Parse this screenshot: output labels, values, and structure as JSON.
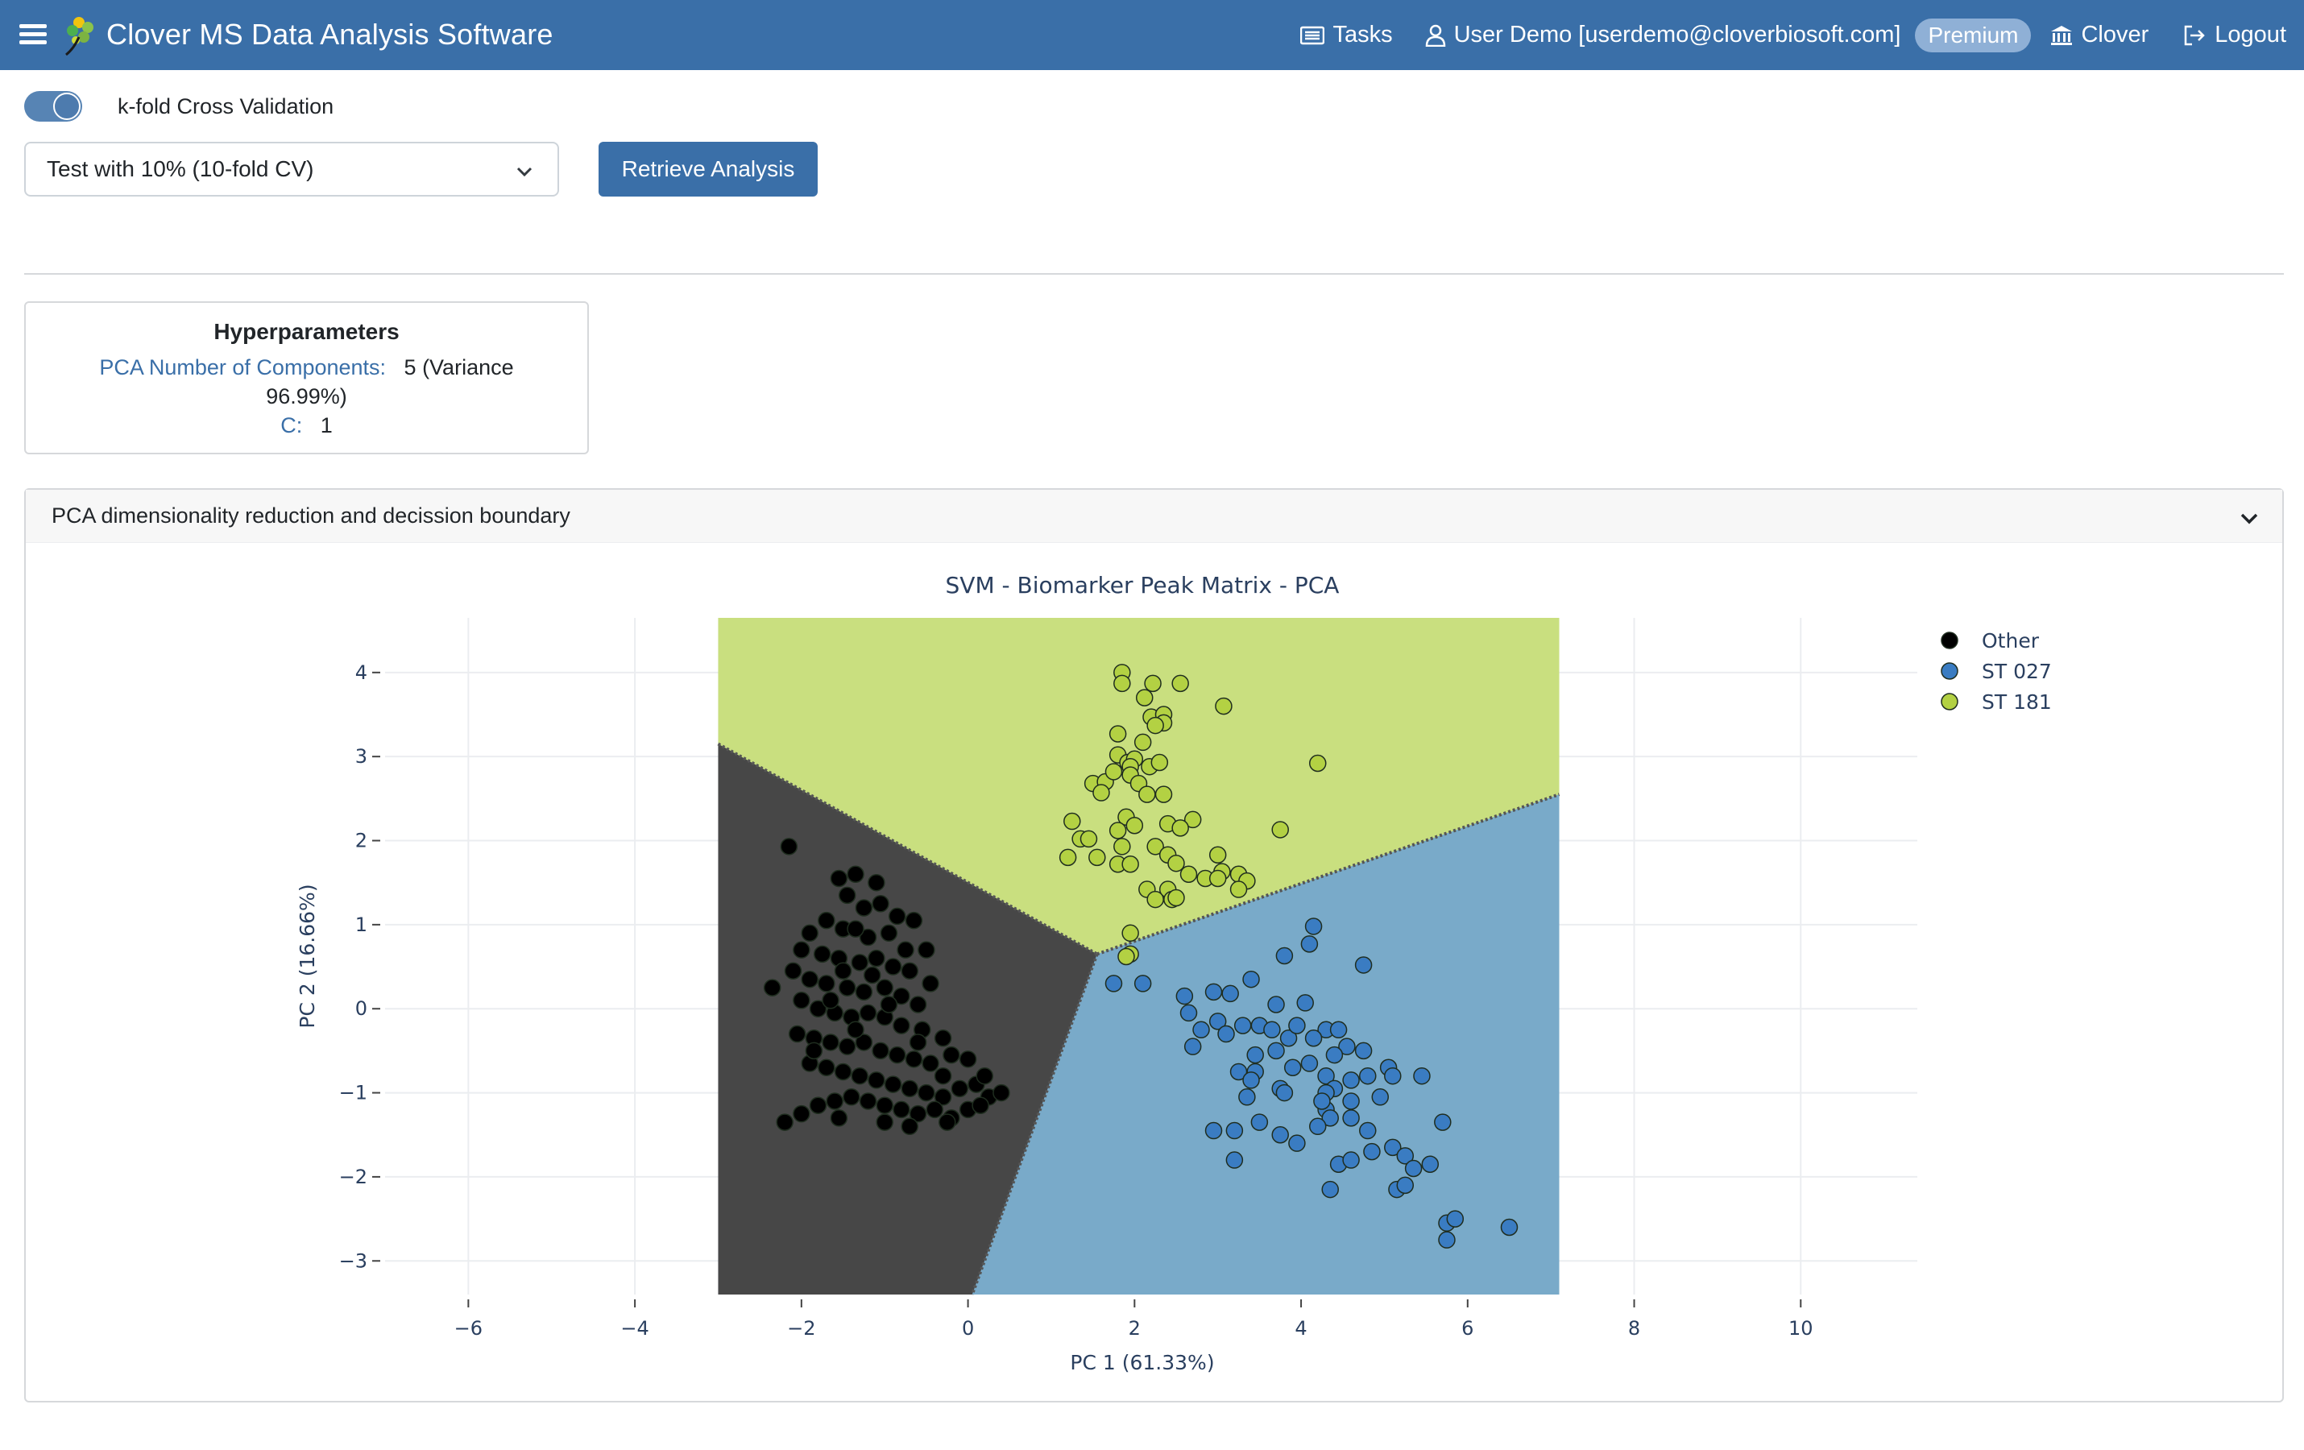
{
  "navbar": {
    "title": "Clover MS Data Analysis Software",
    "tasks_label": "Tasks",
    "user_label": "User Demo [userdemo@cloverbiosoft.com]",
    "premium_label": "Premium",
    "clover_label": "Clover",
    "logout_label": "Logout",
    "color": "#3a6fa8"
  },
  "controls": {
    "cv_toggle_label": "k-fold Cross Validation",
    "cv_toggle_on": true,
    "select_value": "Test with 10% (10-fold CV)",
    "retrieve_button": "Retrieve Analysis"
  },
  "hyperparameters": {
    "title": "Hyperparameters",
    "pca_key": "PCA Number of Components:",
    "pca_value_line1": "5 (Variance",
    "pca_value_line2": "96.99%)",
    "c_key": "C:",
    "c_value": "1"
  },
  "accordion": {
    "header": "PCA dimensionality reduction and decission boundary"
  },
  "chart_data": {
    "type": "scatter",
    "title": "SVM - Biomarker Peak Matrix - PCA",
    "xlabel": "PC 1 (61.33%)",
    "ylabel": "PC 2 (16.66%)",
    "xlim": [
      -7,
      11.4
    ],
    "ylim": [
      -3.4,
      4.65
    ],
    "xticks": [
      -6,
      -4,
      -2,
      0,
      2,
      4,
      6,
      8,
      10
    ],
    "yticks": [
      -3,
      -2,
      -1,
      0,
      1,
      2,
      3,
      4
    ],
    "grid": true,
    "legend_position": "top-right",
    "decision_regions": {
      "x_range": [
        -3,
        7.1
      ],
      "y_range": [
        -3.4,
        4.65
      ],
      "junction": [
        1.55,
        0.65
      ],
      "boundary_top_left": [
        -3,
        3.15
      ],
      "boundary_right": [
        7.1,
        2.55
      ],
      "boundary_bottom": [
        0.05,
        -3.4
      ],
      "colors": {
        "Other": "#474747",
        "ST 027": "#79aac9",
        "ST 181": "#c9df7f"
      }
    },
    "series": [
      {
        "name": "Other",
        "color": "#000000",
        "points": [
          [
            -2.15,
            1.93
          ],
          [
            -2.35,
            0.25
          ],
          [
            -1.55,
            1.55
          ],
          [
            -1.35,
            1.6
          ],
          [
            -1.1,
            1.5
          ],
          [
            -1.45,
            1.35
          ],
          [
            -1.25,
            1.2
          ],
          [
            -1.05,
            1.25
          ],
          [
            -0.85,
            1.1
          ],
          [
            -1.7,
            1.05
          ],
          [
            -1.9,
            0.9
          ],
          [
            -1.5,
            0.95
          ],
          [
            -1.2,
            0.85
          ],
          [
            -0.95,
            0.9
          ],
          [
            -0.75,
            0.7
          ],
          [
            -0.5,
            0.7
          ],
          [
            -2.0,
            0.7
          ],
          [
            -1.75,
            0.65
          ],
          [
            -1.55,
            0.6
          ],
          [
            -1.3,
            0.55
          ],
          [
            -1.1,
            0.6
          ],
          [
            -0.9,
            0.5
          ],
          [
            -0.7,
            0.45
          ],
          [
            -0.45,
            0.3
          ],
          [
            -2.1,
            0.45
          ],
          [
            -1.9,
            0.35
          ],
          [
            -1.7,
            0.3
          ],
          [
            -1.45,
            0.25
          ],
          [
            -1.25,
            0.2
          ],
          [
            -1.0,
            0.25
          ],
          [
            -0.8,
            0.15
          ],
          [
            -0.6,
            0.05
          ],
          [
            -2.0,
            0.1
          ],
          [
            -1.8,
            0.0
          ],
          [
            -1.6,
            -0.05
          ],
          [
            -1.4,
            -0.1
          ],
          [
            -1.2,
            -0.05
          ],
          [
            -1.0,
            -0.1
          ],
          [
            -0.8,
            -0.2
          ],
          [
            -0.55,
            -0.25
          ],
          [
            -0.3,
            -0.35
          ],
          [
            -2.05,
            -0.3
          ],
          [
            -1.85,
            -0.35
          ],
          [
            -1.65,
            -0.4
          ],
          [
            -1.45,
            -0.45
          ],
          [
            -1.25,
            -0.4
          ],
          [
            -1.05,
            -0.5
          ],
          [
            -0.85,
            -0.55
          ],
          [
            -0.65,
            -0.6
          ],
          [
            -0.45,
            -0.65
          ],
          [
            -0.2,
            -0.55
          ],
          [
            0.0,
            -0.6
          ],
          [
            -1.9,
            -0.65
          ],
          [
            -1.7,
            -0.7
          ],
          [
            -1.5,
            -0.75
          ],
          [
            -1.3,
            -0.8
          ],
          [
            -1.1,
            -0.85
          ],
          [
            -0.9,
            -0.9
          ],
          [
            -0.7,
            -0.95
          ],
          [
            -0.5,
            -1.0
          ],
          [
            -0.3,
            -1.05
          ],
          [
            -0.1,
            -0.95
          ],
          [
            0.1,
            -0.9
          ],
          [
            0.25,
            -1.05
          ],
          [
            0.4,
            -1.0
          ],
          [
            0.2,
            -0.8
          ],
          [
            -2.2,
            -1.35
          ],
          [
            -2.0,
            -1.25
          ],
          [
            -1.8,
            -1.15
          ],
          [
            -1.6,
            -1.1
          ],
          [
            -1.4,
            -1.05
          ],
          [
            -1.2,
            -1.1
          ],
          [
            -1.0,
            -1.15
          ],
          [
            -0.8,
            -1.2
          ],
          [
            -0.6,
            -1.25
          ],
          [
            -0.4,
            -1.2
          ],
          [
            -0.2,
            -1.3
          ],
          [
            0.0,
            -1.2
          ],
          [
            -1.55,
            -1.3
          ],
          [
            -1.0,
            -1.35
          ],
          [
            -0.7,
            -1.4
          ],
          [
            -0.25,
            -1.35
          ],
          [
            0.15,
            -1.15
          ],
          [
            -1.65,
            0.1
          ],
          [
            -1.35,
            -0.25
          ],
          [
            -1.15,
            0.4
          ],
          [
            -0.95,
            0.05
          ],
          [
            -0.6,
            -0.4
          ],
          [
            -1.5,
            0.45
          ],
          [
            -1.85,
            -0.5
          ],
          [
            -0.3,
            -0.8
          ],
          [
            -1.35,
            0.95
          ],
          [
            -0.65,
            1.05
          ]
        ]
      },
      {
        "name": "ST 027",
        "color": "#3a7cc2",
        "points": [
          [
            4.15,
            0.98
          ],
          [
            4.1,
            0.77
          ],
          [
            3.8,
            0.63
          ],
          [
            4.75,
            0.52
          ],
          [
            1.75,
            0.3
          ],
          [
            2.1,
            0.3
          ],
          [
            3.4,
            0.35
          ],
          [
            2.95,
            0.2
          ],
          [
            3.15,
            0.18
          ],
          [
            2.6,
            0.15
          ],
          [
            3.7,
            0.05
          ],
          [
            4.05,
            0.07
          ],
          [
            2.65,
            -0.05
          ],
          [
            3.3,
            -0.2
          ],
          [
            3.5,
            -0.2
          ],
          [
            3.65,
            -0.25
          ],
          [
            4.3,
            -0.25
          ],
          [
            4.45,
            -0.25
          ],
          [
            2.8,
            -0.25
          ],
          [
            3.0,
            -0.15
          ],
          [
            3.85,
            -0.35
          ],
          [
            4.15,
            -0.35
          ],
          [
            4.55,
            -0.45
          ],
          [
            4.75,
            -0.5
          ],
          [
            5.05,
            -0.7
          ],
          [
            4.4,
            -0.55
          ],
          [
            3.45,
            -0.55
          ],
          [
            3.7,
            -0.5
          ],
          [
            3.9,
            -0.7
          ],
          [
            4.1,
            -0.65
          ],
          [
            3.25,
            -0.75
          ],
          [
            3.45,
            -0.75
          ],
          [
            2.7,
            -0.45
          ],
          [
            4.3,
            -0.8
          ],
          [
            4.6,
            -0.85
          ],
          [
            4.8,
            -0.8
          ],
          [
            5.1,
            -0.8
          ],
          [
            5.45,
            -0.8
          ],
          [
            3.4,
            -0.85
          ],
          [
            3.75,
            -0.95
          ],
          [
            4.4,
            -0.95
          ],
          [
            4.6,
            -1.1
          ],
          [
            4.3,
            -1.0
          ],
          [
            4.95,
            -1.05
          ],
          [
            3.35,
            -1.05
          ],
          [
            3.8,
            -1.0
          ],
          [
            4.3,
            -1.2
          ],
          [
            4.35,
            -1.3
          ],
          [
            4.6,
            -1.3
          ],
          [
            4.2,
            -1.4
          ],
          [
            4.25,
            -1.1
          ],
          [
            4.8,
            -1.45
          ],
          [
            3.5,
            -1.35
          ],
          [
            3.75,
            -1.5
          ],
          [
            3.95,
            -1.6
          ],
          [
            4.85,
            -1.7
          ],
          [
            5.1,
            -1.65
          ],
          [
            5.25,
            -1.75
          ],
          [
            4.45,
            -1.85
          ],
          [
            4.6,
            -1.8
          ],
          [
            5.35,
            -1.9
          ],
          [
            5.55,
            -1.85
          ],
          [
            3.2,
            -1.8
          ],
          [
            2.95,
            -1.45
          ],
          [
            3.2,
            -1.45
          ],
          [
            5.15,
            -2.15
          ],
          [
            5.25,
            -2.1
          ],
          [
            4.35,
            -2.15
          ],
          [
            5.7,
            -1.35
          ],
          [
            5.75,
            -2.55
          ],
          [
            5.85,
            -2.5
          ],
          [
            5.75,
            -2.75
          ],
          [
            6.5,
            -2.6
          ],
          [
            3.1,
            -0.3
          ],
          [
            3.95,
            -0.2
          ]
        ]
      },
      {
        "name": "ST 181",
        "color": "#b3d143",
        "points": [
          [
            1.85,
            4.0
          ],
          [
            1.85,
            3.87
          ],
          [
            2.22,
            3.87
          ],
          [
            2.55,
            3.87
          ],
          [
            2.12,
            3.7
          ],
          [
            3.07,
            3.6
          ],
          [
            2.2,
            3.47
          ],
          [
            2.35,
            3.5
          ],
          [
            2.35,
            3.4
          ],
          [
            2.25,
            3.37
          ],
          [
            1.8,
            3.27
          ],
          [
            2.1,
            3.17
          ],
          [
            1.8,
            3.02
          ],
          [
            1.92,
            2.93
          ],
          [
            2.0,
            2.97
          ],
          [
            1.95,
            2.88
          ],
          [
            2.18,
            2.88
          ],
          [
            2.3,
            2.93
          ],
          [
            1.5,
            2.68
          ],
          [
            1.65,
            2.7
          ],
          [
            1.75,
            2.82
          ],
          [
            1.95,
            2.78
          ],
          [
            2.05,
            2.68
          ],
          [
            2.15,
            2.55
          ],
          [
            1.6,
            2.57
          ],
          [
            2.35,
            2.55
          ],
          [
            4.2,
            2.92
          ],
          [
            1.25,
            2.23
          ],
          [
            1.9,
            2.28
          ],
          [
            2.4,
            2.2
          ],
          [
            1.35,
            2.02
          ],
          [
            1.45,
            2.02
          ],
          [
            1.8,
            2.12
          ],
          [
            2.0,
            2.18
          ],
          [
            2.7,
            2.25
          ],
          [
            3.75,
            2.13
          ],
          [
            2.55,
            2.15
          ],
          [
            1.85,
            1.93
          ],
          [
            2.25,
            1.93
          ],
          [
            1.2,
            1.8
          ],
          [
            1.55,
            1.8
          ],
          [
            1.8,
            1.72
          ],
          [
            1.95,
            1.72
          ],
          [
            2.4,
            1.83
          ],
          [
            2.5,
            1.73
          ],
          [
            3.0,
            1.83
          ],
          [
            2.65,
            1.6
          ],
          [
            2.85,
            1.55
          ],
          [
            3.05,
            1.63
          ],
          [
            3.25,
            1.6
          ],
          [
            3.35,
            1.52
          ],
          [
            2.15,
            1.42
          ],
          [
            2.4,
            1.42
          ],
          [
            2.25,
            1.3
          ],
          [
            2.45,
            1.3
          ],
          [
            2.5,
            1.32
          ],
          [
            3.25,
            1.42
          ],
          [
            1.95,
            0.9
          ],
          [
            1.95,
            0.65
          ],
          [
            1.9,
            0.62
          ],
          [
            3.0,
            1.55
          ]
        ]
      }
    ]
  }
}
